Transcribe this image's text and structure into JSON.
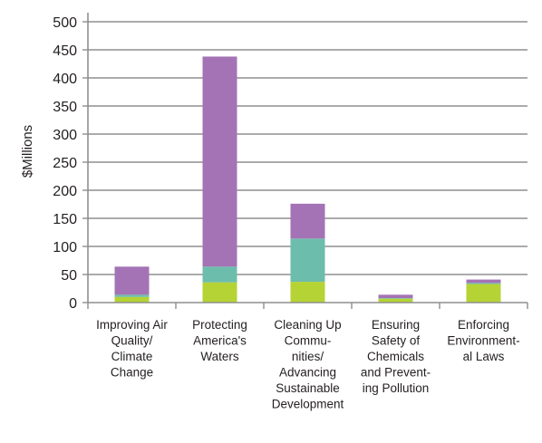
{
  "chart_data": {
    "type": "bar",
    "stacked": true,
    "title": "",
    "xlabel": "",
    "ylabel": "$Millions",
    "ylim": [
      0,
      500
    ],
    "yticks": [
      0,
      50,
      100,
      150,
      200,
      250,
      300,
      350,
      400,
      450,
      500
    ],
    "grid": true,
    "categories": [
      [
        "Improving Air",
        "Quality/",
        "Climate",
        "Change"
      ],
      [
        "Protecting",
        "America's",
        "Waters"
      ],
      [
        "Cleaning Up",
        "Commu-",
        "nities/",
        "Advancing",
        "Sustainable",
        "Development"
      ],
      [
        "Ensuring",
        "Safety of",
        "Chemicals",
        "and Prevent-",
        "ing Pollution"
      ],
      [
        "Enforcing",
        "Environment-",
        "al Laws"
      ]
    ],
    "series": [
      {
        "color": "#b5d334",
        "values": [
          10,
          36,
          37,
          7,
          33
        ]
      },
      {
        "color": "#6dbdac",
        "values": [
          4,
          28,
          77,
          1,
          2
        ]
      },
      {
        "color": "#a473b5",
        "values": [
          50,
          374,
          62,
          6,
          6
        ]
      }
    ]
  }
}
